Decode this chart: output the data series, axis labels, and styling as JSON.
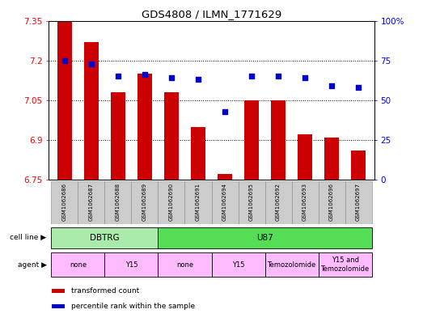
{
  "title": "GDS4808 / ILMN_1771629",
  "samples": [
    "GSM1062686",
    "GSM1062687",
    "GSM1062688",
    "GSM1062689",
    "GSM1062690",
    "GSM1062691",
    "GSM1062694",
    "GSM1062695",
    "GSM1062692",
    "GSM1062693",
    "GSM1062696",
    "GSM1062697"
  ],
  "transformed_count": [
    7.35,
    7.27,
    7.08,
    7.15,
    7.08,
    6.95,
    6.77,
    7.05,
    7.05,
    6.92,
    6.91,
    6.86
  ],
  "percentile_rank": [
    75,
    73,
    65,
    66,
    64,
    63,
    43,
    65,
    65,
    64,
    59,
    58
  ],
  "ylim_left": [
    6.75,
    7.35
  ],
  "ylim_right": [
    0,
    100
  ],
  "yticks_left": [
    6.75,
    6.9,
    7.05,
    7.2,
    7.35
  ],
  "yticks_right": [
    0,
    25,
    50,
    75,
    100
  ],
  "ytick_labels_right": [
    "0",
    "25",
    "50",
    "75",
    "100%"
  ],
  "bar_color": "#cc0000",
  "dot_color": "#0000cc",
  "cell_line_groups": [
    {
      "label": "DBTRG",
      "start": 0,
      "end": 4,
      "color": "#aaeaaa"
    },
    {
      "label": "U87",
      "start": 4,
      "end": 12,
      "color": "#55dd55"
    }
  ],
  "agent_groups": [
    {
      "label": "none",
      "start": 0,
      "end": 2,
      "color": "#ffbbff"
    },
    {
      "label": "Y15",
      "start": 2,
      "end": 4,
      "color": "#ffbbff"
    },
    {
      "label": "none",
      "start": 4,
      "end": 6,
      "color": "#ffbbff"
    },
    {
      "label": "Y15",
      "start": 6,
      "end": 8,
      "color": "#ffbbff"
    },
    {
      "label": "Temozolomide",
      "start": 8,
      "end": 10,
      "color": "#ffbbff"
    },
    {
      "label": "Y15 and\nTemozolomide",
      "start": 10,
      "end": 12,
      "color": "#ffbbff"
    }
  ],
  "legend_bar_label": "transformed count",
  "legend_dot_label": "percentile rank within the sample",
  "cell_line_label": "cell line",
  "agent_label": "agent",
  "bar_width": 0.55,
  "sample_bg_color": "#cccccc",
  "fig_bg_color": "#ffffff"
}
